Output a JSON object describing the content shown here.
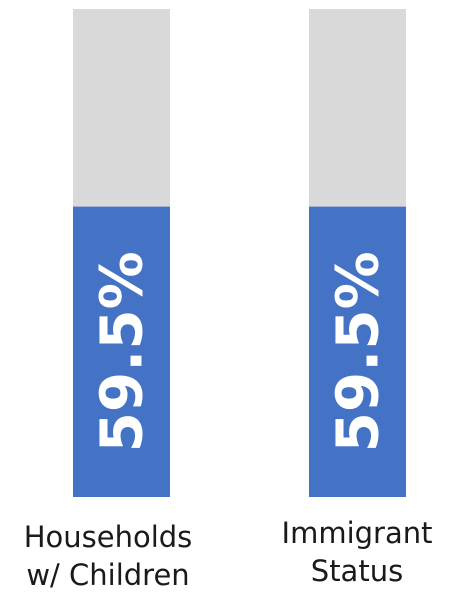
{
  "chart_data": {
    "type": "bar",
    "categories": [
      {
        "lines": [
          "Households",
          "w/ Children"
        ]
      },
      {
        "lines": [
          "Immigrant",
          "Status"
        ]
      }
    ],
    "values": [
      59.5,
      59.5
    ],
    "data_labels": [
      "59.5%",
      "59.5%"
    ],
    "ylim": [
      0,
      100
    ],
    "colors": {
      "filled": "#4472c4",
      "remaining": "#d9d9d9",
      "label_text": "#ffffff"
    }
  }
}
